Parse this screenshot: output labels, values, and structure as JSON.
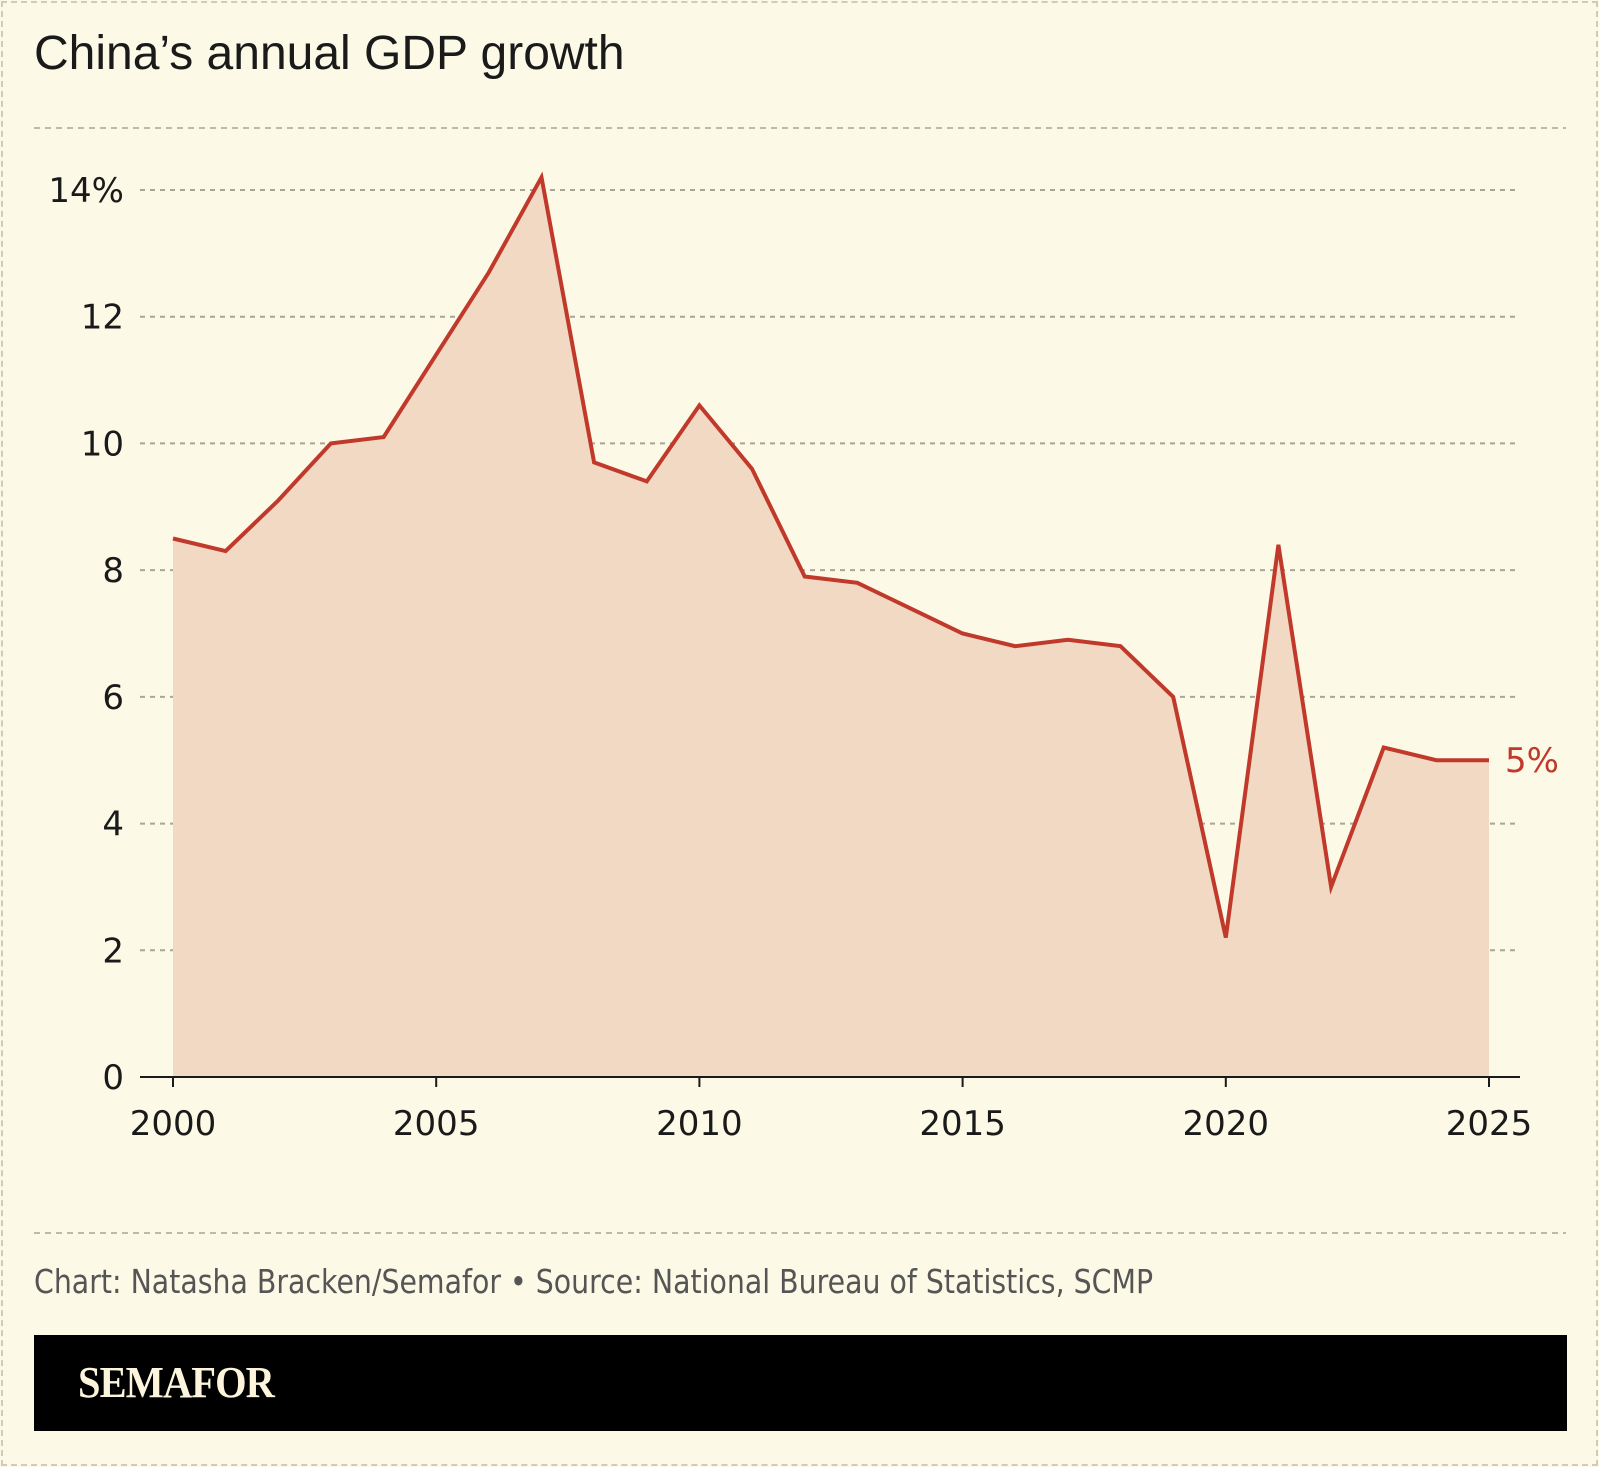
{
  "chart_data": {
    "type": "area",
    "title": "China’s annual GDP growth",
    "x": [
      2000,
      2001,
      2002,
      2003,
      2004,
      2005,
      2006,
      2007,
      2008,
      2009,
      2010,
      2011,
      2012,
      2013,
      2014,
      2015,
      2016,
      2017,
      2018,
      2019,
      2020,
      2021,
      2022,
      2023,
      2024,
      2025
    ],
    "series": [
      {
        "values": [
          8.5,
          8.3,
          9.1,
          10.0,
          10.1,
          11.4,
          12.7,
          14.2,
          9.7,
          9.4,
          10.6,
          9.6,
          7.9,
          7.8,
          7.4,
          7.0,
          6.8,
          6.9,
          6.8,
          6.0,
          2.2,
          8.4,
          3.0,
          5.2,
          5.0,
          5.0
        ]
      }
    ],
    "xlim": [
      2000,
      2025
    ],
    "ylim": [
      0,
      14
    ],
    "x_ticks": [
      "2000",
      "2005",
      "2010",
      "2015",
      "2020",
      "2025"
    ],
    "y_ticks": [
      "0",
      "2",
      "4",
      "6",
      "8",
      "10",
      "12",
      "14%"
    ],
    "grid": "horizontal dashed",
    "end_label": "5%",
    "colors": {
      "line": "#c0392b",
      "fill": "#f2d9c4",
      "background": "#fcf9e6"
    }
  },
  "footer": {
    "source": "Chart: Natasha Bracken/Semafor • Source: National Bureau of Statistics, SCMP",
    "logo": "SEMAFOR"
  }
}
